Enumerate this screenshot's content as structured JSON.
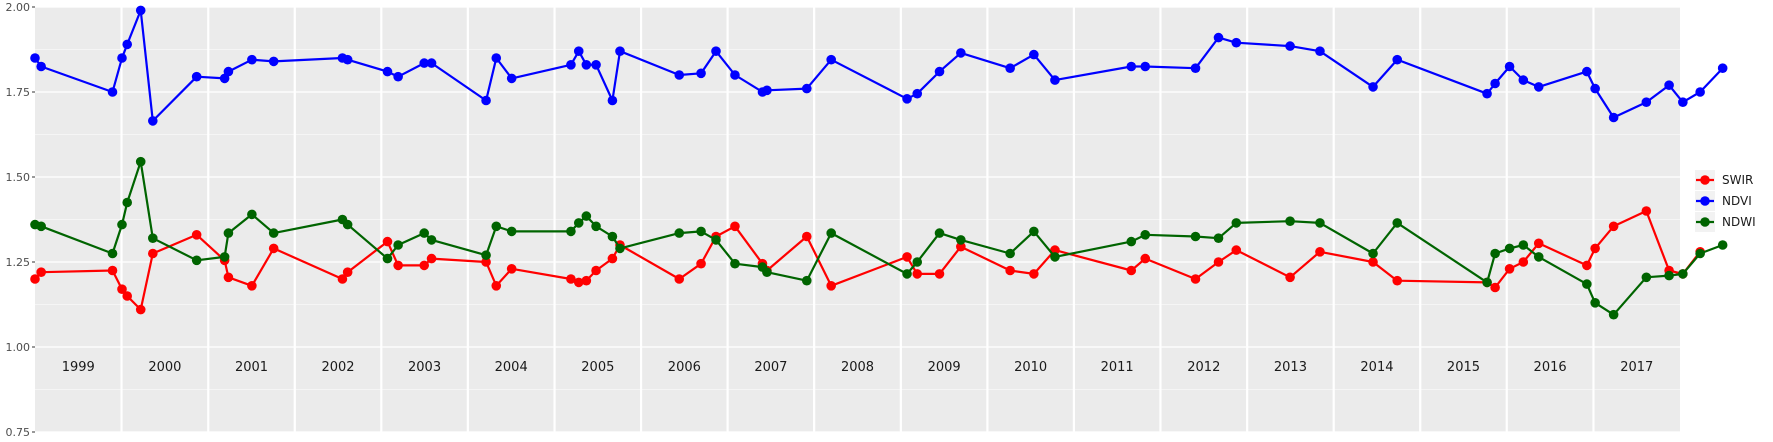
{
  "chart_data": {
    "type": "line",
    "title": "",
    "xlabel": "",
    "ylabel": "",
    "ylim": [
      0.75,
      2.0
    ],
    "y_ticks": [
      "0.75",
      "1.00",
      "1.25",
      "1.50",
      "1.75",
      "2.00"
    ],
    "xlim": [
      "1999-01-01",
      "2018-01-01"
    ],
    "year_labels": [
      "1999",
      "2000",
      "2001",
      "2002",
      "2003",
      "2004",
      "2005",
      "2006",
      "2007",
      "2008",
      "2009",
      "2010",
      "2011",
      "2012",
      "2013",
      "2014",
      "2015",
      "2016",
      "2017"
    ],
    "grid": true,
    "legend_position": "right",
    "series": [
      {
        "name": "SWIR",
        "color": "#ff0000",
        "points": [
          [
            "1999-01-01",
            1.2
          ],
          [
            "1999-01-27",
            1.22
          ],
          [
            "1999-11-24",
            1.225
          ],
          [
            "2000-01-03",
            1.17
          ],
          [
            "2000-01-25",
            1.15
          ],
          [
            "2000-03-22",
            1.11
          ],
          [
            "2000-05-12",
            1.275
          ],
          [
            "2000-11-13",
            1.33
          ],
          [
            "2001-03-11",
            1.255
          ],
          [
            "2001-03-27",
            1.205
          ],
          [
            "2001-07-04",
            1.18
          ],
          [
            "2001-10-04",
            1.29
          ],
          [
            "2002-07-21",
            1.2
          ],
          [
            "2002-08-12",
            1.22
          ],
          [
            "2003-01-27",
            1.31
          ],
          [
            "2003-03-13",
            1.24
          ],
          [
            "2003-07-01",
            1.24
          ],
          [
            "2003-08-01",
            1.26
          ],
          [
            "2004-03-18",
            1.25
          ],
          [
            "2004-04-30",
            1.18
          ],
          [
            "2004-07-04",
            1.23
          ],
          [
            "2005-03-11",
            1.2
          ],
          [
            "2005-04-13",
            1.19
          ],
          [
            "2005-05-15",
            1.195
          ],
          [
            "2005-06-25",
            1.225
          ],
          [
            "2005-09-02",
            1.26
          ],
          [
            "2005-10-04",
            1.3
          ],
          [
            "2006-06-11",
            1.2
          ],
          [
            "2006-09-11",
            1.245
          ],
          [
            "2006-11-13",
            1.325
          ],
          [
            "2007-02-01",
            1.355
          ],
          [
            "2007-05-28",
            1.245
          ],
          [
            "2007-06-16",
            1.225
          ],
          [
            "2007-12-01",
            1.325
          ],
          [
            "2008-03-13",
            1.18
          ],
          [
            "2009-01-27",
            1.265
          ],
          [
            "2009-03-11",
            1.215
          ],
          [
            "2009-06-13",
            1.215
          ],
          [
            "2009-09-11",
            1.295
          ],
          [
            "2010-04-07",
            1.225
          ],
          [
            "2010-07-16",
            1.215
          ],
          [
            "2010-10-13",
            1.285
          ],
          [
            "2011-08-31",
            1.225
          ],
          [
            "2011-10-29",
            1.26
          ],
          [
            "2012-05-28",
            1.2
          ],
          [
            "2012-09-02",
            1.25
          ],
          [
            "2012-11-16",
            1.285
          ],
          [
            "2013-07-01",
            1.205
          ],
          [
            "2013-11-04",
            1.28
          ],
          [
            "2014-06-16",
            1.25
          ],
          [
            "2014-09-26",
            1.195
          ],
          [
            "2015-10-10",
            1.19
          ],
          [
            "2015-11-13",
            1.175
          ],
          [
            "2016-01-13",
            1.23
          ],
          [
            "2016-03-11",
            1.25
          ],
          [
            "2016-05-15",
            1.305
          ],
          [
            "2016-12-04",
            1.24
          ],
          [
            "2017-01-08",
            1.29
          ],
          [
            "2017-03-27",
            1.355
          ],
          [
            "2017-08-12",
            1.4
          ],
          [
            "2017-11-16",
            1.225
          ],
          [
            "2018-01-13",
            1.215
          ],
          [
            "2018-03-27",
            1.28
          ]
        ]
      },
      {
        "name": "NDVI",
        "color": "#0000ff",
        "points": [
          [
            "1999-01-01",
            1.85
          ],
          [
            "1999-01-27",
            1.825
          ],
          [
            "1999-11-24",
            1.75
          ],
          [
            "2000-01-03",
            1.85
          ],
          [
            "2000-01-25",
            1.89
          ],
          [
            "2000-03-22",
            1.99
          ],
          [
            "2000-05-12",
            1.665
          ],
          [
            "2000-11-13",
            1.795
          ],
          [
            "2001-03-11",
            1.79
          ],
          [
            "2001-03-27",
            1.81
          ],
          [
            "2001-07-04",
            1.845
          ],
          [
            "2001-10-04",
            1.84
          ],
          [
            "2002-07-21",
            1.85
          ],
          [
            "2002-08-12",
            1.845
          ],
          [
            "2003-01-27",
            1.81
          ],
          [
            "2003-03-13",
            1.795
          ],
          [
            "2003-07-01",
            1.835
          ],
          [
            "2003-08-01",
            1.835
          ],
          [
            "2004-03-18",
            1.725
          ],
          [
            "2004-04-30",
            1.85
          ],
          [
            "2004-07-04",
            1.79
          ],
          [
            "2005-03-11",
            1.83
          ],
          [
            "2005-04-13",
            1.87
          ],
          [
            "2005-05-15",
            1.83
          ],
          [
            "2005-06-25",
            1.83
          ],
          [
            "2005-09-02",
            1.725
          ],
          [
            "2005-10-04",
            1.87
          ],
          [
            "2006-06-11",
            1.8
          ],
          [
            "2006-09-11",
            1.805
          ],
          [
            "2006-11-13",
            1.87
          ],
          [
            "2007-02-01",
            1.8
          ],
          [
            "2007-05-28",
            1.75
          ],
          [
            "2007-06-16",
            1.755
          ],
          [
            "2007-12-01",
            1.76
          ],
          [
            "2008-03-13",
            1.845
          ],
          [
            "2009-01-27",
            1.73
          ],
          [
            "2009-03-11",
            1.745
          ],
          [
            "2009-06-13",
            1.81
          ],
          [
            "2009-09-11",
            1.865
          ],
          [
            "2010-04-07",
            1.82
          ],
          [
            "2010-07-16",
            1.86
          ],
          [
            "2010-10-13",
            1.785
          ],
          [
            "2011-08-31",
            1.825
          ],
          [
            "2011-10-29",
            1.825
          ],
          [
            "2012-05-28",
            1.82
          ],
          [
            "2012-09-02",
            1.91
          ],
          [
            "2012-11-16",
            1.895
          ],
          [
            "2013-07-01",
            1.885
          ],
          [
            "2013-11-04",
            1.87
          ],
          [
            "2014-06-16",
            1.765
          ],
          [
            "2014-09-26",
            1.845
          ],
          [
            "2015-10-10",
            1.745
          ],
          [
            "2015-11-13",
            1.775
          ],
          [
            "2016-01-13",
            1.825
          ],
          [
            "2016-03-11",
            1.785
          ],
          [
            "2016-05-15",
            1.765
          ],
          [
            "2016-12-04",
            1.81
          ],
          [
            "2017-01-08",
            1.76
          ],
          [
            "2017-03-27",
            1.675
          ],
          [
            "2017-08-12",
            1.72
          ],
          [
            "2017-11-16",
            1.77
          ],
          [
            "2018-01-13",
            1.72
          ],
          [
            "2018-03-27",
            1.75
          ],
          [
            "2018-06-30",
            1.82
          ]
        ]
      },
      {
        "name": "NDWI",
        "color": "#006400",
        "points": [
          [
            "1999-01-01",
            1.36
          ],
          [
            "1999-01-27",
            1.355
          ],
          [
            "1999-11-24",
            1.275
          ],
          [
            "2000-01-03",
            1.36
          ],
          [
            "2000-01-25",
            1.425
          ],
          [
            "2000-03-22",
            1.545
          ],
          [
            "2000-05-12",
            1.32
          ],
          [
            "2000-11-13",
            1.255
          ],
          [
            "2001-03-11",
            1.265
          ],
          [
            "2001-03-27",
            1.335
          ],
          [
            "2001-07-04",
            1.39
          ],
          [
            "2001-10-04",
            1.335
          ],
          [
            "2002-07-21",
            1.375
          ],
          [
            "2002-08-12",
            1.36
          ],
          [
            "2003-01-27",
            1.26
          ],
          [
            "2003-03-13",
            1.3
          ],
          [
            "2003-07-01",
            1.335
          ],
          [
            "2003-08-01",
            1.315
          ],
          [
            "2004-03-18",
            1.27
          ],
          [
            "2004-04-30",
            1.355
          ],
          [
            "2004-07-04",
            1.34
          ],
          [
            "2005-03-11",
            1.34
          ],
          [
            "2005-04-13",
            1.365
          ],
          [
            "2005-05-15",
            1.385
          ],
          [
            "2005-06-25",
            1.355
          ],
          [
            "2005-09-02",
            1.325
          ],
          [
            "2005-10-04",
            1.29
          ],
          [
            "2006-06-11",
            1.335
          ],
          [
            "2006-09-11",
            1.34
          ],
          [
            "2006-11-13",
            1.315
          ],
          [
            "2007-02-01",
            1.245
          ],
          [
            "2007-05-28",
            1.235
          ],
          [
            "2007-06-16",
            1.22
          ],
          [
            "2007-12-01",
            1.195
          ],
          [
            "2008-03-13",
            1.335
          ],
          [
            "2009-01-27",
            1.215
          ],
          [
            "2009-03-11",
            1.25
          ],
          [
            "2009-06-13",
            1.335
          ],
          [
            "2009-09-11",
            1.315
          ],
          [
            "2010-04-07",
            1.275
          ],
          [
            "2010-07-16",
            1.34
          ],
          [
            "2010-10-13",
            1.265
          ],
          [
            "2011-08-31",
            1.31
          ],
          [
            "2011-10-29",
            1.33
          ],
          [
            "2012-05-28",
            1.325
          ],
          [
            "2012-09-02",
            1.32
          ],
          [
            "2012-11-16",
            1.365
          ],
          [
            "2013-07-01",
            1.37
          ],
          [
            "2013-11-04",
            1.365
          ],
          [
            "2014-06-16",
            1.275
          ],
          [
            "2014-09-26",
            1.365
          ],
          [
            "2015-10-10",
            1.19
          ],
          [
            "2015-11-13",
            1.275
          ],
          [
            "2016-01-13",
            1.29
          ],
          [
            "2016-03-11",
            1.3
          ],
          [
            "2016-05-15",
            1.265
          ],
          [
            "2016-12-04",
            1.185
          ],
          [
            "2017-01-08",
            1.13
          ],
          [
            "2017-03-27",
            1.095
          ],
          [
            "2017-08-12",
            1.205
          ],
          [
            "2017-11-16",
            1.21
          ],
          [
            "2018-01-13",
            1.215
          ],
          [
            "2018-03-27",
            1.275
          ],
          [
            "2018-06-30",
            1.3
          ]
        ]
      }
    ]
  },
  "legend": {
    "items": [
      {
        "name": "SWIR",
        "color": "#ff0000"
      },
      {
        "name": "NDVI",
        "color": "#0000ff"
      },
      {
        "name": "NDWI",
        "color": "#006400"
      }
    ]
  },
  "style": {
    "panel_background": "#ebebeb",
    "grid_color": "#ffffff"
  }
}
